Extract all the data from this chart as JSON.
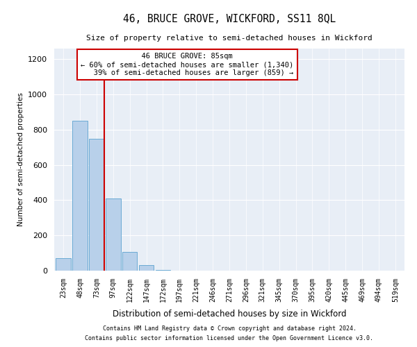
{
  "title": "46, BRUCE GROVE, WICKFORD, SS11 8QL",
  "subtitle": "Size of property relative to semi-detached houses in Wickford",
  "xlabel": "Distribution of semi-detached houses by size in Wickford",
  "ylabel": "Number of semi-detached properties",
  "footnote1": "Contains HM Land Registry data © Crown copyright and database right 2024.",
  "footnote2": "Contains public sector information licensed under the Open Government Licence v3.0.",
  "bin_labels": [
    "23sqm",
    "48sqm",
    "73sqm",
    "97sqm",
    "122sqm",
    "147sqm",
    "172sqm",
    "197sqm",
    "221sqm",
    "246sqm",
    "271sqm",
    "296sqm",
    "321sqm",
    "345sqm",
    "370sqm",
    "395sqm",
    "420sqm",
    "445sqm",
    "469sqm",
    "494sqm",
    "519sqm"
  ],
  "bar_values": [
    70,
    850,
    750,
    410,
    105,
    30,
    5,
    0,
    0,
    0,
    0,
    0,
    0,
    0,
    0,
    0,
    0,
    0,
    0,
    0,
    0
  ],
  "bar_color": "#b8d0ea",
  "bar_edge_color": "#6aaad4",
  "property_bin_index": 2.48,
  "property_label": "46 BRUCE GROVE: 85sqm",
  "pct_smaller": 60,
  "count_smaller": 1340,
  "pct_larger": 39,
  "count_larger": 859,
  "vline_color": "#cc0000",
  "annotation_box_color": "#cc0000",
  "ylim": [
    0,
    1260
  ],
  "yticks": [
    0,
    200,
    400,
    600,
    800,
    1000,
    1200
  ],
  "plot_bg_color": "#e8eef6"
}
